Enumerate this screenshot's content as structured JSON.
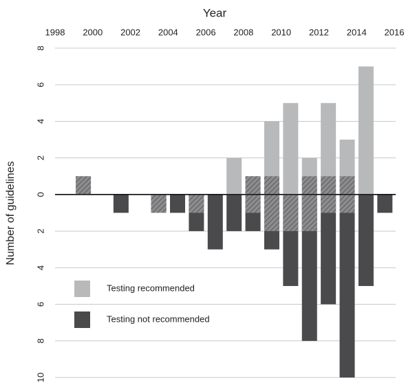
{
  "chart_data": {
    "type": "bar",
    "title": "Year",
    "y_label": "Number of guidelines",
    "x": [
      1999,
      2000,
      2001,
      2002,
      2003,
      2004,
      2005,
      2006,
      2007,
      2008,
      2009,
      2010,
      2011,
      2012,
      2013,
      2014,
      2015
    ],
    "xlim": [
      1998,
      2016
    ],
    "xticks": [
      1998,
      2000,
      2002,
      2004,
      2006,
      2008,
      2010,
      2012,
      2014,
      2016
    ],
    "ylim": [
      -10,
      8
    ],
    "yticks": [
      {
        "value": -10,
        "label": "10"
      },
      {
        "value": -8,
        "label": "8"
      },
      {
        "value": -6,
        "label": "6"
      },
      {
        "value": -4,
        "label": "4"
      },
      {
        "value": -2,
        "label": "2"
      },
      0,
      2,
      4,
      6,
      8
    ],
    "grid": true,
    "series": [
      {
        "name": "Testing recommended",
        "color": "#b8b9bb",
        "values": [
          1,
          0,
          0,
          0,
          0,
          0,
          0,
          0,
          2,
          1,
          4,
          5,
          2,
          5,
          3,
          7,
          0
        ],
        "hatched": [
          1,
          0,
          0,
          0,
          0,
          0,
          0,
          0,
          0,
          1,
          1,
          0,
          1,
          1,
          1,
          0,
          0
        ]
      },
      {
        "name": "Testing not recommended",
        "color": "#4a4a4c",
        "values": [
          0,
          0,
          -1,
          0,
          -1,
          -1,
          -2,
          -3,
          -2,
          -2,
          -3,
          -5,
          -8,
          -6,
          -10,
          -5,
          -1
        ],
        "hatched": [
          0,
          0,
          0,
          0,
          -1,
          0,
          -1,
          0,
          0,
          -1,
          -2,
          -2,
          -2,
          -1,
          -1,
          0,
          0
        ]
      }
    ]
  }
}
